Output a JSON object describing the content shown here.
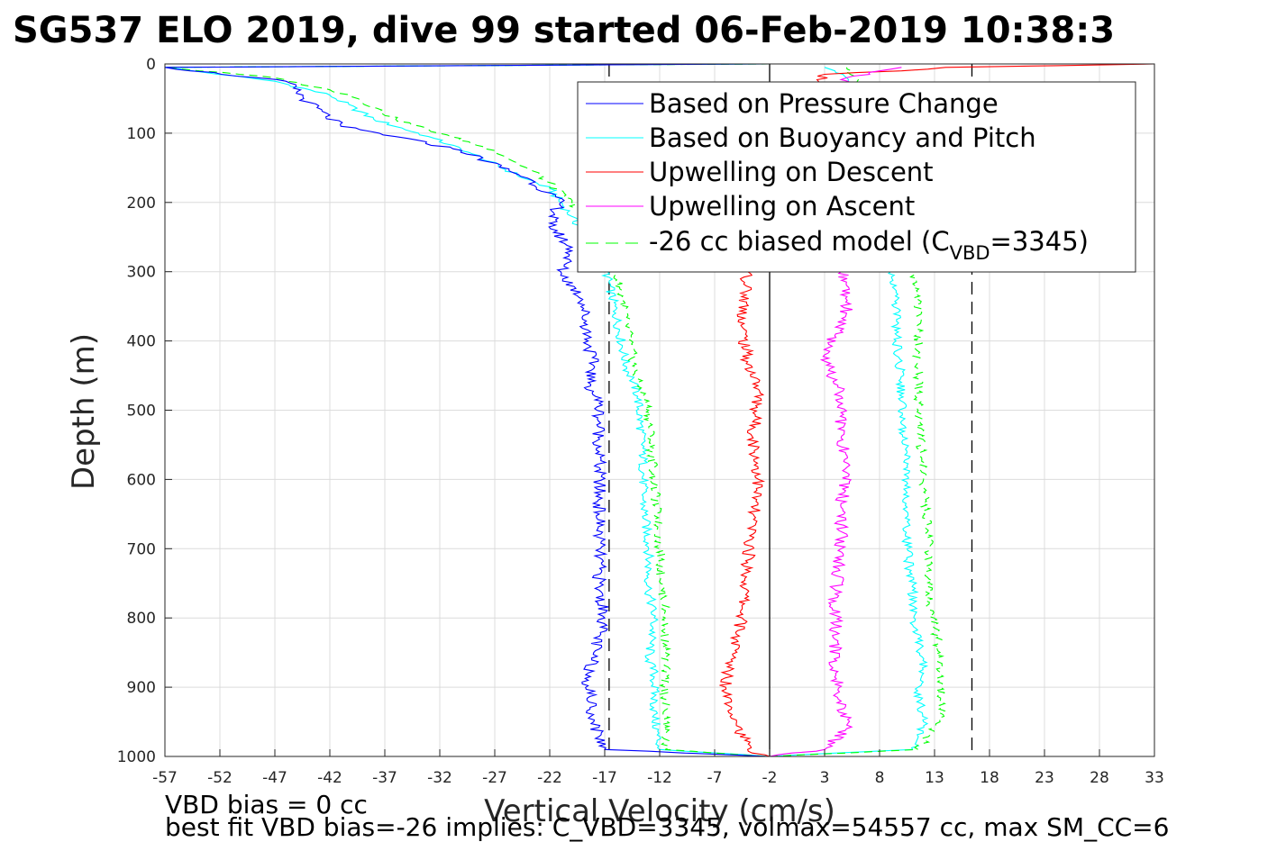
{
  "chart_data": {
    "type": "line",
    "title": "SG537 ELO 2019, dive 99 started 06-Feb-2019 10:38:3",
    "xlabel": "Vertical Velocity (cm/s)",
    "ylabel": "Depth (m)",
    "xlim": [
      -57,
      33
    ],
    "ylim": [
      0,
      1000
    ],
    "y_reversed": true,
    "x_ticks": [
      -57,
      -52,
      -47,
      -42,
      -37,
      -32,
      -27,
      -22,
      -17,
      -12,
      -7,
      -2,
      3,
      8,
      13,
      18,
      23,
      28,
      33
    ],
    "y_ticks": [
      0,
      100,
      200,
      300,
      400,
      500,
      600,
      700,
      800,
      900,
      1000
    ],
    "grid": true,
    "legend_position": "top-right",
    "legend": [
      {
        "label": "Based on Pressure Change",
        "color": "#0000ff",
        "dash": "solid"
      },
      {
        "label": "Based on Buoyancy and Pitch",
        "color": "#00ffff",
        "dash": "solid"
      },
      {
        "label": "Upwelling on Descent",
        "color": "#ff0000",
        "dash": "solid"
      },
      {
        "label": "Upwelling on Ascent",
        "color": "#ff00ff",
        "dash": "solid"
      },
      {
        "label_main": "-26 cc biased model (C",
        "label_sub": "VBD",
        "label_tail": "=3345)",
        "color": "#00ff00",
        "dash": "dashed"
      }
    ],
    "reference_lines": [
      {
        "x": -2,
        "style": "solid",
        "color": "#000000"
      },
      {
        "x": -16.6,
        "style": "dashed",
        "color": "#000000"
      },
      {
        "x": 16.4,
        "style": "dashed",
        "color": "#000000"
      }
    ],
    "series": [
      {
        "name": "Based on Pressure Change",
        "color": "#0000ff",
        "dash": "solid",
        "points": [
          [
            -2,
            0
          ],
          [
            -57,
            5
          ],
          [
            -46,
            25
          ],
          [
            -44,
            55
          ],
          [
            -41,
            90
          ],
          [
            -36,
            105
          ],
          [
            -30,
            125
          ],
          [
            -24,
            165
          ],
          [
            -21,
            200
          ],
          [
            -22,
            230
          ],
          [
            -20,
            270
          ],
          [
            -21,
            300
          ],
          [
            -19,
            340
          ],
          [
            -18.5,
            400
          ],
          [
            -18,
            440
          ],
          [
            -18.5,
            460
          ],
          [
            -17.5,
            490
          ],
          [
            -17.5,
            560
          ],
          [
            -17.5,
            650
          ],
          [
            -17.5,
            760
          ],
          [
            -17,
            800
          ],
          [
            -18,
            850
          ],
          [
            -18.5,
            890
          ],
          [
            -18,
            950
          ],
          [
            -17,
            990
          ],
          [
            -2,
            1000
          ]
        ]
      },
      {
        "name": "Upwelling on Descent",
        "color": "#ff0000",
        "dash": "solid",
        "points": [
          [
            33,
            0
          ],
          [
            14,
            5
          ],
          [
            10,
            10
          ],
          [
            3,
            15
          ],
          [
            -4,
            300
          ],
          [
            -4.5,
            380
          ],
          [
            -4,
            430
          ],
          [
            -3,
            470
          ],
          [
            -3.5,
            540
          ],
          [
            -3,
            600
          ],
          [
            -3.5,
            650
          ],
          [
            -4,
            720
          ],
          [
            -4.5,
            800
          ],
          [
            -5.5,
            860
          ],
          [
            -6,
            900
          ],
          [
            -5,
            950
          ],
          [
            -4,
            990
          ],
          [
            -2,
            1000
          ]
        ]
      },
      {
        "name": "Upwelling on Ascent",
        "color": "#ff00ff",
        "dash": "solid",
        "points": [
          [
            -2,
            1000
          ],
          [
            3,
            990
          ],
          [
            5,
            960
          ],
          [
            4.5,
            920
          ],
          [
            4,
            880
          ],
          [
            4,
            820
          ],
          [
            4,
            760
          ],
          [
            4.5,
            700
          ],
          [
            4.5,
            640
          ],
          [
            5,
            590
          ],
          [
            4.5,
            540
          ],
          [
            4.5,
            480
          ],
          [
            3.5,
            440
          ],
          [
            3,
            420
          ],
          [
            4,
            390
          ],
          [
            5,
            360
          ],
          [
            5,
            320
          ],
          [
            4.5,
            300
          ],
          [
            5,
            20
          ],
          [
            8,
            10
          ],
          [
            10,
            5
          ]
        ]
      }
    ],
    "paired_series": [
      {
        "name": "Based on Buoyancy and Pitch",
        "color": "#00ffff",
        "dash": "solid",
        "descent": [
          [
            -2,
            0
          ],
          [
            -57,
            5
          ],
          [
            -47,
            25
          ],
          [
            -42,
            45
          ],
          [
            -38,
            80
          ],
          [
            -33,
            105
          ],
          [
            -29,
            130
          ],
          [
            -25,
            160
          ],
          [
            -22,
            180
          ],
          [
            -20,
            220
          ],
          [
            -17,
            290
          ],
          [
            -16,
            360
          ],
          [
            -15,
            440
          ],
          [
            -14.5,
            455
          ],
          [
            -14,
            480
          ],
          [
            -13.5,
            560
          ],
          [
            -13.5,
            630
          ],
          [
            -13,
            700
          ],
          [
            -13,
            760
          ],
          [
            -12.5,
            800
          ],
          [
            -13,
            860
          ],
          [
            -12.5,
            880
          ],
          [
            -12.5,
            940
          ],
          [
            -12,
            990
          ],
          [
            -2,
            1000
          ]
        ],
        "ascent": [
          [
            -2,
            1000
          ],
          [
            11,
            990
          ],
          [
            12,
            950
          ],
          [
            11.5,
            900
          ],
          [
            12,
            880
          ],
          [
            11.5,
            830
          ],
          [
            11,
            810
          ],
          [
            11,
            760
          ],
          [
            10.5,
            700
          ],
          [
            10.5,
            640
          ],
          [
            10.5,
            580
          ],
          [
            10,
            520
          ],
          [
            10,
            460
          ],
          [
            9.5,
            400
          ],
          [
            9.5,
            330
          ],
          [
            9,
            300
          ],
          [
            5,
            20
          ],
          [
            3,
            5
          ]
        ]
      },
      {
        "name": "-26 cc biased model (CVBD=3345)",
        "color": "#00ff00",
        "dash": "dashed",
        "descent": [
          [
            -2,
            0
          ],
          [
            -57,
            5
          ],
          [
            -47,
            20
          ],
          [
            -40,
            45
          ],
          [
            -36,
            80
          ],
          [
            -31,
            105
          ],
          [
            -27,
            125
          ],
          [
            -23,
            160
          ],
          [
            -20,
            200
          ],
          [
            -17,
            260
          ],
          [
            -15.5,
            330
          ],
          [
            -14.5,
            420
          ],
          [
            -14,
            460
          ],
          [
            -13,
            500
          ],
          [
            -12.5,
            600
          ],
          [
            -12,
            700
          ],
          [
            -11.5,
            800
          ],
          [
            -11.5,
            850
          ],
          [
            -11.5,
            900
          ],
          [
            -11.5,
            990
          ],
          [
            -2,
            1000
          ]
        ],
        "ascent": [
          [
            -2,
            1000
          ],
          [
            11.5,
            990
          ],
          [
            13.5,
            950
          ],
          [
            13.5,
            900
          ],
          [
            13.5,
            850
          ],
          [
            13,
            810
          ],
          [
            12.5,
            780
          ],
          [
            12.5,
            700
          ],
          [
            12,
            600
          ],
          [
            11.5,
            500
          ],
          [
            11.5,
            440
          ],
          [
            11.5,
            330
          ],
          [
            11,
            300
          ],
          [
            6,
            20
          ],
          [
            5,
            5
          ]
        ]
      }
    ]
  },
  "notes": {
    "line1": "VBD bias = 0 cc",
    "line2": "best fit VBD bias=-26 implies: C_VBD=3345, volmax=54557 cc, max SM_CC=6"
  }
}
